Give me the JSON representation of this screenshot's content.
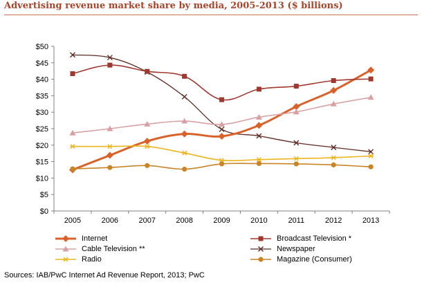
{
  "title": "Advertising revenue market share by media, 2005-2013 ($ billions)",
  "source": "Sources: IAB/PwC Internet Ad Revenue Report, 2013; PwC",
  "chart_data": {
    "type": "line",
    "title": "Advertising revenue market share by media, 2005-2013 ($ billions)",
    "x": [
      "2005",
      "2006",
      "2007",
      "2008",
      "2009",
      "2010",
      "2011",
      "2012",
      "2013"
    ],
    "ylim": [
      0,
      50
    ],
    "yticks": [
      0,
      5,
      10,
      15,
      20,
      25,
      30,
      35,
      40,
      45,
      50
    ],
    "ytick_labels": [
      "$0",
      "$5",
      "$10",
      "$15",
      "$20",
      "$25",
      "$30",
      "$35",
      "$40",
      "$45",
      "$50"
    ],
    "grid": false,
    "legend_position": "bottom",
    "series": [
      {
        "name": "Internet",
        "color": "#d9622b",
        "marker": "diamond",
        "width": 3,
        "values": [
          12.5,
          16.9,
          21.2,
          23.4,
          22.7,
          26.0,
          31.7,
          36.6,
          42.8
        ]
      },
      {
        "name": "Broadcast Television *",
        "color": "#a0382e",
        "marker": "square",
        "width": 1.6,
        "values": [
          41.7,
          44.3,
          42.4,
          40.9,
          33.8,
          37.0,
          37.9,
          39.6,
          40.1
        ]
      },
      {
        "name": "Cable Television **",
        "color": "#d9a0a4",
        "marker": "triangle",
        "width": 1.6,
        "values": [
          23.7,
          25.0,
          26.4,
          27.3,
          26.3,
          28.5,
          30.1,
          32.5,
          34.5
        ]
      },
      {
        "name": "Newspaper",
        "color": "#5e2b22",
        "marker": "x",
        "width": 1.3,
        "values": [
          47.4,
          46.6,
          42.2,
          34.7,
          24.8,
          22.8,
          20.7,
          19.3,
          18.0
        ]
      },
      {
        "name": "Radio",
        "color": "#ecb51e",
        "marker": "asterisk",
        "width": 1.6,
        "values": [
          19.6,
          19.6,
          19.6,
          17.6,
          15.4,
          15.6,
          15.9,
          16.2,
          16.7
        ]
      },
      {
        "name": "Magazine (Consumer)",
        "color": "#c98426",
        "marker": "circle",
        "width": 1.6,
        "values": [
          12.8,
          13.2,
          13.8,
          12.7,
          14.3,
          14.4,
          14.3,
          14.0,
          13.4
        ]
      }
    ]
  }
}
